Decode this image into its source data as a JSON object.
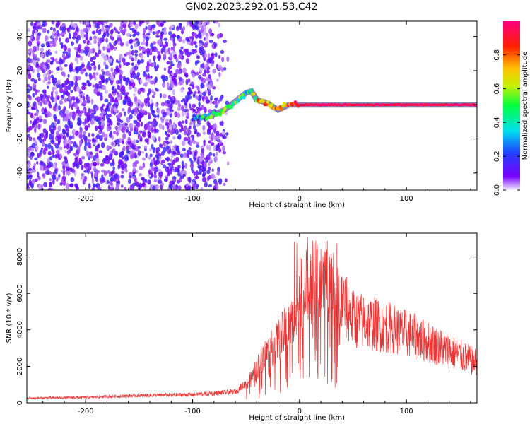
{
  "title": "GN02.2023.292.01.53.C42",
  "chart_data": [
    {
      "type": "heatmap",
      "title": "GN02.2023.292.01.53.C42",
      "xlabel": "Height of straight line (km)",
      "ylabel": "Frequency (Hz)",
      "xlim": [
        -255,
        166
      ],
      "ylim": [
        -50,
        49
      ],
      "xticks": [
        -200,
        -100,
        0,
        100
      ],
      "yticks": [
        -40,
        -20,
        0,
        20,
        40
      ],
      "colorbar": {
        "label": "Normalized spectral amplitude",
        "range": [
          0,
          1
        ],
        "ticks": [
          "0.0",
          "0.2",
          "0.4",
          "0.6",
          "0.8"
        ],
        "colormap": "rainbow (purple to red/magenta)"
      },
      "features": [
        {
          "name": "noise region",
          "x_range": [
            -255,
            -75
          ],
          "y_range": [
            -50,
            49
          ],
          "amplitude": "0.05-0.3"
        },
        {
          "name": "signal trace",
          "points": [
            {
              "x": -100,
              "y": -8,
              "amp": 0.3
            },
            {
              "x": -85,
              "y": -7,
              "amp": 0.45
            },
            {
              "x": -70,
              "y": -3,
              "amp": 0.6
            },
            {
              "x": -60,
              "y": 2,
              "amp": 0.5
            },
            {
              "x": -50,
              "y": 7,
              "amp": 0.45
            },
            {
              "x": -45,
              "y": 8,
              "amp": 0.4
            },
            {
              "x": -40,
              "y": 3,
              "amp": 0.7
            },
            {
              "x": -30,
              "y": 1,
              "amp": 0.8
            },
            {
              "x": -20,
              "y": -3,
              "amp": 0.7
            },
            {
              "x": -10,
              "y": 0,
              "amp": 0.85
            },
            {
              "x": 0,
              "y": 0,
              "amp": 0.95
            },
            {
              "x": 50,
              "y": 0,
              "amp": 0.95
            },
            {
              "x": 100,
              "y": 0,
              "amp": 0.95
            },
            {
              "x": 166,
              "y": 0,
              "amp": 0.95
            }
          ]
        }
      ]
    },
    {
      "type": "line",
      "xlabel": "Height of straight line (km)",
      "ylabel": "SNR (10 * v/v)",
      "xlim": [
        -255,
        166
      ],
      "ylim": [
        0,
        9300
      ],
      "xticks": [
        -200,
        -100,
        0,
        100
      ],
      "yticks": [
        0,
        2000,
        4000,
        6000,
        8000
      ],
      "series": [
        {
          "color": "#ee3333",
          "envelope_x": [
            -255,
            -200,
            -150,
            -100,
            -60,
            -45,
            -35,
            -25,
            -15,
            -5,
            0,
            10,
            20,
            30,
            40,
            50,
            80,
            100,
            130,
            166
          ],
          "envelope_y": [
            250,
            300,
            400,
            450,
            600,
            1300,
            2500,
            3000,
            3800,
            4500,
            6000,
            6500,
            7000,
            6500,
            5500,
            4600,
            4200,
            3800,
            3100,
            2200
          ]
        }
      ]
    }
  ]
}
